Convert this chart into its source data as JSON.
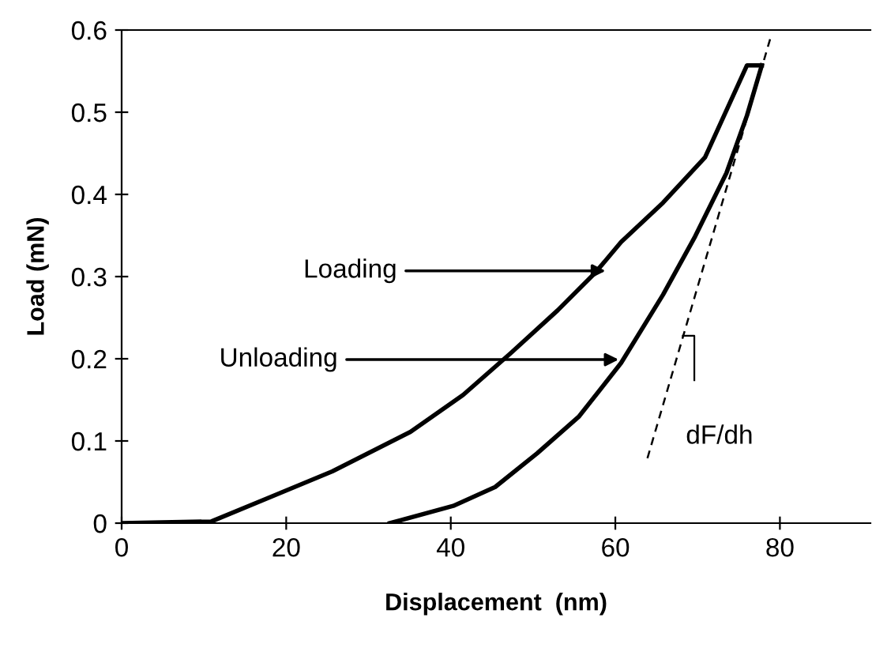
{
  "chart_data": {
    "type": "line",
    "xlabel": "Displacement  (nm)",
    "ylabel": "Load (mN)",
    "xlim": [
      0,
      91
    ],
    "ylim": [
      0,
      0.6
    ],
    "xticks": [
      0,
      20,
      40,
      60,
      80
    ],
    "yticks": [
      0,
      0.1,
      0.2,
      0.3,
      0.4,
      0.5,
      0.6
    ],
    "grid": false,
    "legend": false,
    "marker": "none",
    "series": [
      {
        "color": "#000000",
        "line_style": "solid",
        "x": [
          0,
          10.9,
          17.9,
          25.6,
          35.1,
          41.5,
          47.3,
          53,
          57.5,
          60.7,
          65.8,
          70.9,
          76,
          77.8
        ],
        "values": [
          0,
          0.002,
          0.031,
          0.063,
          0.111,
          0.156,
          0.207,
          0.259,
          0.304,
          0.342,
          0.39,
          0.445,
          0.557,
          0.557
        ]
      },
      {
        "color": "#000000",
        "line_style": "solid",
        "x": [
          77.8,
          76,
          73.5,
          69.7,
          65.8,
          60.7,
          55.6,
          50.5,
          45.4,
          40.3,
          32.6
        ],
        "values": [
          0.557,
          0.496,
          0.426,
          0.349,
          0.278,
          0.195,
          0.13,
          0.085,
          0.044,
          0.021,
          0
        ]
      },
      {
        "color": "#000000",
        "line_style": "dashed",
        "x": [
          63.9,
          78.9
        ],
        "values": [
          0.079,
          0.592
        ]
      }
    ],
    "annotations": [
      {
        "text": "Loading",
        "x": 58.8,
        "y": 0.307
      },
      {
        "text": "Unloading",
        "x": 60.4,
        "y": 0.199
      },
      {
        "text": "dF/dh",
        "x": 67.5,
        "y": 0.2
      }
    ]
  }
}
